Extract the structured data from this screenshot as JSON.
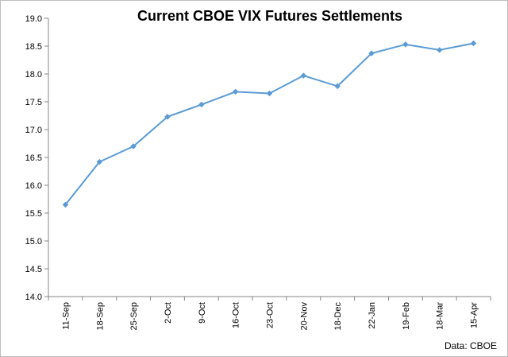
{
  "chart_data": {
    "type": "line",
    "title": "Current CBOE VIX Futures Settlements",
    "xlabel": "",
    "ylabel": "",
    "categories": [
      "11-Sep",
      "18-Sep",
      "25-Sep",
      "2-Oct",
      "9-Oct",
      "16-Oct",
      "23-Oct",
      "20-Nov",
      "18-Dec",
      "22-Jan",
      "19-Feb",
      "18-Mar",
      "15-Apr"
    ],
    "series": [
      {
        "values": [
          15.65,
          16.42,
          16.7,
          17.23,
          17.45,
          17.68,
          17.65,
          17.97,
          17.78,
          18.37,
          18.53,
          18.43,
          18.55
        ]
      }
    ],
    "ylim": [
      14.0,
      19.0
    ],
    "ytick_step": 0.5,
    "ytick_labels": [
      "14.0",
      "14.5",
      "15.0",
      "15.5",
      "16.0",
      "16.5",
      "17.0",
      "17.5",
      "18.0",
      "18.5",
      "19.0"
    ],
    "grid": false,
    "legend": "none",
    "line_color": "#5B9BD5",
    "annotation": "Data: CBOE"
  }
}
